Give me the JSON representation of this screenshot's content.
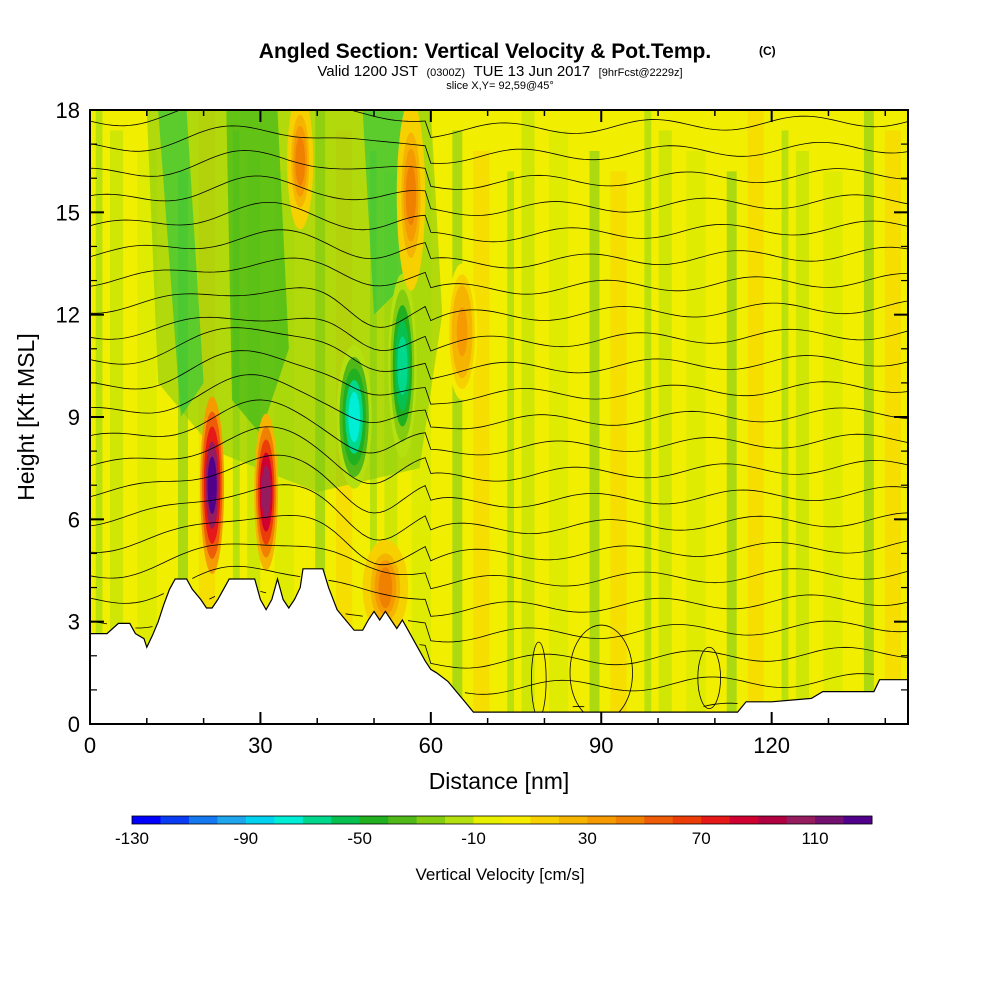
{
  "chart_data": {
    "type": "heatmap",
    "title": "Angled Section: Vertical Velocity & Pot.Temp.",
    "title_suffix": "(C)",
    "subtitle": {
      "valid": "Valid 1200 JST",
      "utc": "(0300Z)",
      "date": "TUE 13 Jun 2017",
      "forecast": "[9hrFcst@2229z]"
    },
    "slice_text": "slice X,Y= 92,59@45°",
    "xlabel": "Distance [nm]",
    "ylabel": "Height [Kft MSL]",
    "xlim": [
      0,
      144
    ],
    "ylim": [
      0,
      18
    ],
    "x_ticks": [
      "0",
      "30",
      "60",
      "90",
      "120"
    ],
    "y_ticks": [
      "0",
      "3",
      "6",
      "9",
      "12",
      "15",
      "18"
    ],
    "colorbar": {
      "label": "Vertical Velocity [cm/s]",
      "range": [
        -130,
        130
      ],
      "ticks": [
        "-130",
        "-90",
        "-50",
        "-10",
        "30",
        "70",
        "110"
      ],
      "colors": [
        "#0000ff",
        "#0a3cf5",
        "#1478f0",
        "#1ea5ec",
        "#00d2f0",
        "#00eed6",
        "#00d88c",
        "#08c050",
        "#20b020",
        "#50b818",
        "#84cc10",
        "#b4e010",
        "#e6f000",
        "#f5ec00",
        "#f7d000",
        "#f5b400",
        "#f59a00",
        "#f08000",
        "#ee5c08",
        "#ec3c08",
        "#e61818",
        "#d00030",
        "#b00040",
        "#961c60",
        "#741070",
        "#50008a"
      ]
    },
    "velocity_features": [
      {
        "x": 21.5,
        "y": 7.0,
        "value": 125
      },
      {
        "x": 31.0,
        "y": 6.8,
        "value": 105
      },
      {
        "x": 46.5,
        "y": 9.0,
        "value": -75
      },
      {
        "x": 55.0,
        "y": 10.5,
        "value": -65
      },
      {
        "x": 37.0,
        "y": 16.5,
        "value": 40
      },
      {
        "x": 56.5,
        "y": 15.5,
        "value": 45
      },
      {
        "x": 65.5,
        "y": 11.5,
        "value": 35
      },
      {
        "x": 52.0,
        "y": 4.0,
        "value": 45
      }
    ],
    "terrain": [
      {
        "x": 0,
        "h": 2.65
      },
      {
        "x": 3,
        "h": 2.65
      },
      {
        "x": 5,
        "h": 2.95
      },
      {
        "x": 7,
        "h": 2.95
      },
      {
        "x": 8,
        "h": 2.65
      },
      {
        "x": 9.5,
        "h": 2.5
      },
      {
        "x": 10,
        "h": 2.25
      },
      {
        "x": 11,
        "h": 2.6
      },
      {
        "x": 12,
        "h": 3.0
      },
      {
        "x": 13,
        "h": 3.5
      },
      {
        "x": 14,
        "h": 3.95
      },
      {
        "x": 15,
        "h": 4.25
      },
      {
        "x": 17,
        "h": 4.25
      },
      {
        "x": 18,
        "h": 3.95
      },
      {
        "x": 19.5,
        "h": 3.65
      },
      {
        "x": 20.5,
        "h": 3.4
      },
      {
        "x": 21.5,
        "h": 3.4
      },
      {
        "x": 22.5,
        "h": 3.65
      },
      {
        "x": 23.5,
        "h": 3.95
      },
      {
        "x": 24.5,
        "h": 4.25
      },
      {
        "x": 29,
        "h": 4.25
      },
      {
        "x": 30,
        "h": 3.65
      },
      {
        "x": 31,
        "h": 3.35
      },
      {
        "x": 32,
        "h": 3.65
      },
      {
        "x": 33,
        "h": 4.25
      },
      {
        "x": 34,
        "h": 3.65
      },
      {
        "x": 35,
        "h": 3.4
      },
      {
        "x": 36,
        "h": 3.65
      },
      {
        "x": 37,
        "h": 4.0
      },
      {
        "x": 37.5,
        "h": 4.55
      },
      {
        "x": 41,
        "h": 4.55
      },
      {
        "x": 42,
        "h": 4.0
      },
      {
        "x": 43.5,
        "h": 3.35
      },
      {
        "x": 45,
        "h": 3.05
      },
      {
        "x": 46.5,
        "h": 2.75
      },
      {
        "x": 48,
        "h": 2.75
      },
      {
        "x": 49,
        "h": 3.05
      },
      {
        "x": 50,
        "h": 3.3
      },
      {
        "x": 51,
        "h": 3.05
      },
      {
        "x": 52,
        "h": 3.3
      },
      {
        "x": 53,
        "h": 3.05
      },
      {
        "x": 54,
        "h": 2.8
      },
      {
        "x": 55,
        "h": 3.05
      },
      {
        "x": 56,
        "h": 2.75
      },
      {
        "x": 57,
        "h": 2.45
      },
      {
        "x": 58,
        "h": 2.15
      },
      {
        "x": 59,
        "h": 1.85
      },
      {
        "x": 60,
        "h": 1.6
      },
      {
        "x": 61,
        "h": 1.5
      },
      {
        "x": 63,
        "h": 1.25
      },
      {
        "x": 64.5,
        "h": 0.95
      },
      {
        "x": 66,
        "h": 0.65
      },
      {
        "x": 67.5,
        "h": 0.35
      },
      {
        "x": 114,
        "h": 0.35
      },
      {
        "x": 115.5,
        "h": 0.65
      },
      {
        "x": 120,
        "h": 0.65
      },
      {
        "x": 127,
        "h": 0.75
      },
      {
        "x": 129,
        "h": 0.95
      },
      {
        "x": 138,
        "h": 0.95
      },
      {
        "x": 139,
        "h": 1.3
      },
      {
        "x": 144,
        "h": 1.3
      }
    ]
  }
}
